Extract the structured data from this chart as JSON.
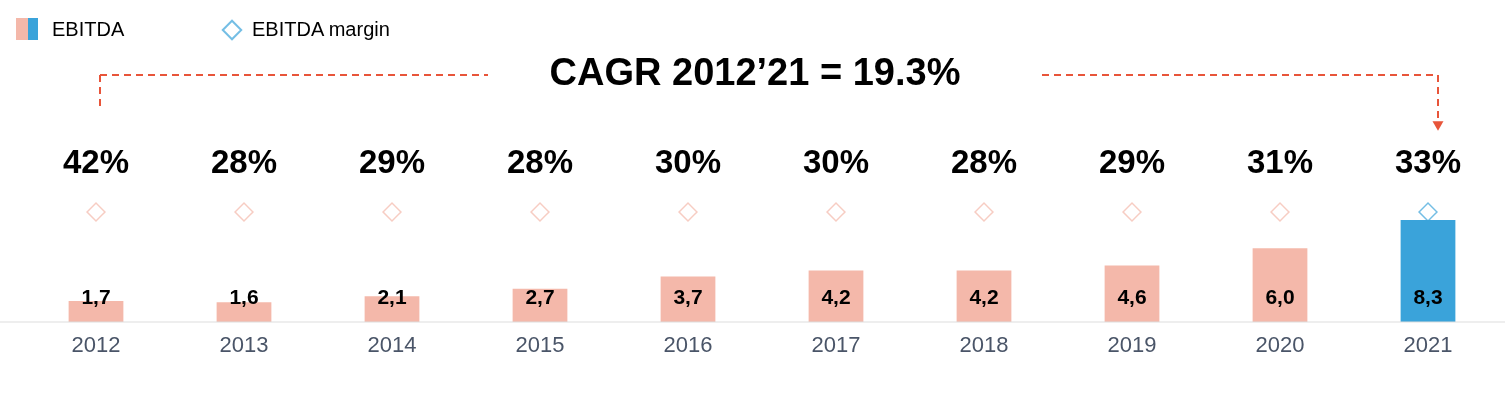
{
  "chart_data": {
    "type": "bar",
    "categories": [
      "2012",
      "2013",
      "2014",
      "2015",
      "2016",
      "2017",
      "2018",
      "2019",
      "2020",
      "2021"
    ],
    "series": [
      {
        "name": "EBITDA",
        "values": [
          1.7,
          1.6,
          2.1,
          2.7,
          3.7,
          4.2,
          4.2,
          4.6,
          6.0,
          8.3
        ],
        "colors": [
          "#f4b8aa",
          "#f4b8aa",
          "#f4b8aa",
          "#f4b8aa",
          "#f4b8aa",
          "#f4b8aa",
          "#f4b8aa",
          "#f4b8aa",
          "#f4b8aa",
          "#3aa3da"
        ],
        "value_labels": [
          "1,7",
          "1,6",
          "2,1",
          "2,7",
          "3,7",
          "4,2",
          "4,2",
          "4,6",
          "6,0",
          "8,3"
        ]
      }
    ],
    "annotations": [
      "CAGR 2012’21 = 19.3%",
      "EBITDA margin",
      "42%",
      "28%",
      "29%",
      "28%",
      "30%",
      "30%",
      "28%",
      "29%",
      "31%",
      "33%"
    ],
    "legend": "top left",
    "grid": false
  }
}
